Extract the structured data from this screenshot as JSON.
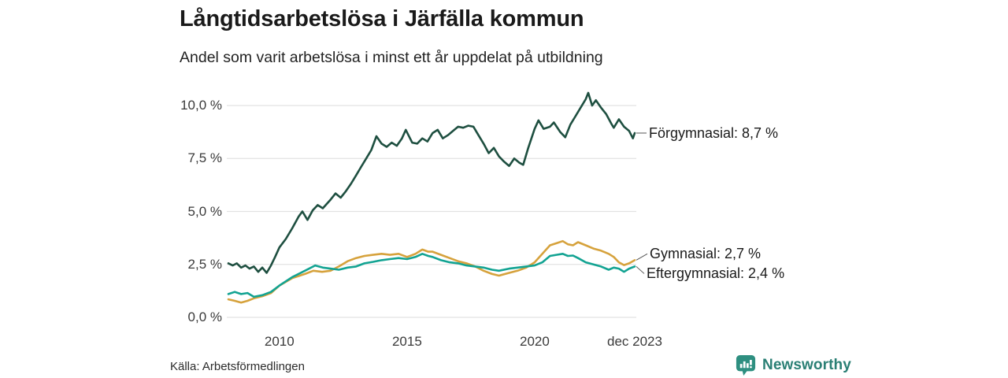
{
  "header": {
    "title": "Långtidsarbetslösa i Järfälla kommun",
    "subtitle": "Andel som varit arbetslösa i minst ett år uppdelat på utbildning"
  },
  "footer": {
    "source": "Källa: Arbetsförmedlingen",
    "brand": "Newsworthy"
  },
  "colors": {
    "forgymnasial": "#1e4f40",
    "gymnasial": "#d6a23c",
    "eftergymnasial": "#12a392",
    "grid": "#e2e2e2",
    "connector": "#555555",
    "text": "#1a1a1a",
    "tick_text": "#3a3a3a",
    "brand": "#2a7f74",
    "brand_icon": "#2e8f80"
  },
  "chart_data": {
    "type": "line",
    "title": "Långtidsarbetslösa i Järfälla kommun",
    "subtitle": "Andel som varit arbetslösa i minst ett år uppdelat på utbildning",
    "unit": "%",
    "grid": "horizontal",
    "legend_position": "right-end-labels",
    "x_axis": {
      "range": [
        2008.0,
        2023.92
      ],
      "ticks": [
        {
          "label": "2010",
          "x": 2010
        },
        {
          "label": "2015",
          "x": 2015
        },
        {
          "label": "2020",
          "x": 2020
        },
        {
          "label": "dec 2023",
          "x": 2023.92
        }
      ]
    },
    "y_axis": {
      "range": [
        0,
        10
      ],
      "ticks": [
        {
          "label": "10,0 %",
          "value": 10
        },
        {
          "label": "7,5 %",
          "value": 7.5
        },
        {
          "label": "5,0 %",
          "value": 5
        },
        {
          "label": "2,5 %",
          "value": 2.5
        },
        {
          "label": "0,0 %",
          "value": 0
        }
      ]
    },
    "series": [
      {
        "id": "forgymnasial",
        "name": "Förgymnasial",
        "end_label": "Förgymnasial: 8,7 %",
        "end_value": 8.7,
        "color_key": "forgymnasial",
        "points": [
          [
            2008.0,
            2.55
          ],
          [
            2008.17,
            2.45
          ],
          [
            2008.33,
            2.55
          ],
          [
            2008.5,
            2.35
          ],
          [
            2008.67,
            2.45
          ],
          [
            2008.83,
            2.3
          ],
          [
            2009.0,
            2.4
          ],
          [
            2009.17,
            2.15
          ],
          [
            2009.33,
            2.35
          ],
          [
            2009.5,
            2.1
          ],
          [
            2009.67,
            2.45
          ],
          [
            2009.83,
            2.85
          ],
          [
            2010.0,
            3.3
          ],
          [
            2010.25,
            3.7
          ],
          [
            2010.5,
            4.2
          ],
          [
            2010.75,
            4.75
          ],
          [
            2010.9,
            5.0
          ],
          [
            2011.1,
            4.6
          ],
          [
            2011.3,
            5.05
          ],
          [
            2011.5,
            5.3
          ],
          [
            2011.7,
            5.15
          ],
          [
            2012.0,
            5.55
          ],
          [
            2012.2,
            5.85
          ],
          [
            2012.4,
            5.65
          ],
          [
            2012.6,
            5.95
          ],
          [
            2012.8,
            6.3
          ],
          [
            2013.0,
            6.7
          ],
          [
            2013.2,
            7.1
          ],
          [
            2013.4,
            7.5
          ],
          [
            2013.6,
            7.9
          ],
          [
            2013.8,
            8.55
          ],
          [
            2014.0,
            8.2
          ],
          [
            2014.2,
            8.05
          ],
          [
            2014.4,
            8.25
          ],
          [
            2014.6,
            8.1
          ],
          [
            2014.8,
            8.45
          ],
          [
            2014.95,
            8.85
          ],
          [
            2015.2,
            8.25
          ],
          [
            2015.4,
            8.2
          ],
          [
            2015.6,
            8.45
          ],
          [
            2015.8,
            8.3
          ],
          [
            2016.0,
            8.7
          ],
          [
            2016.2,
            8.85
          ],
          [
            2016.4,
            8.45
          ],
          [
            2016.6,
            8.6
          ],
          [
            2016.8,
            8.8
          ],
          [
            2017.0,
            9.0
          ],
          [
            2017.2,
            8.95
          ],
          [
            2017.4,
            9.05
          ],
          [
            2017.6,
            9.0
          ],
          [
            2017.8,
            8.6
          ],
          [
            2018.0,
            8.2
          ],
          [
            2018.2,
            7.75
          ],
          [
            2018.4,
            8.0
          ],
          [
            2018.6,
            7.6
          ],
          [
            2018.8,
            7.35
          ],
          [
            2019.0,
            7.15
          ],
          [
            2019.2,
            7.5
          ],
          [
            2019.4,
            7.3
          ],
          [
            2019.55,
            7.2
          ],
          [
            2019.75,
            8.0
          ],
          [
            2020.0,
            8.9
          ],
          [
            2020.15,
            9.3
          ],
          [
            2020.35,
            8.9
          ],
          [
            2020.6,
            9.0
          ],
          [
            2020.75,
            9.2
          ],
          [
            2021.0,
            8.75
          ],
          [
            2021.2,
            8.5
          ],
          [
            2021.4,
            9.1
          ],
          [
            2021.6,
            9.5
          ],
          [
            2021.8,
            9.9
          ],
          [
            2022.0,
            10.3
          ],
          [
            2022.1,
            10.6
          ],
          [
            2022.25,
            10.0
          ],
          [
            2022.4,
            10.25
          ],
          [
            2022.6,
            9.9
          ],
          [
            2022.8,
            9.6
          ],
          [
            2023.0,
            9.15
          ],
          [
            2023.1,
            8.95
          ],
          [
            2023.3,
            9.35
          ],
          [
            2023.5,
            9.0
          ],
          [
            2023.7,
            8.8
          ],
          [
            2023.85,
            8.45
          ],
          [
            2023.92,
            8.7
          ]
        ]
      },
      {
        "id": "gymnasial",
        "name": "Gymnasial",
        "end_label": "Gymnasial: 2,7 %",
        "end_value": 2.7,
        "color_key": "gymnasial",
        "points": [
          [
            2008.0,
            0.85
          ],
          [
            2008.25,
            0.78
          ],
          [
            2008.5,
            0.7
          ],
          [
            2008.75,
            0.78
          ],
          [
            2009.0,
            0.9
          ],
          [
            2009.33,
            1.0
          ],
          [
            2009.67,
            1.15
          ],
          [
            2010.0,
            1.5
          ],
          [
            2010.5,
            1.85
          ],
          [
            2011.0,
            2.05
          ],
          [
            2011.33,
            2.2
          ],
          [
            2011.67,
            2.15
          ],
          [
            2012.0,
            2.2
          ],
          [
            2012.33,
            2.4
          ],
          [
            2012.67,
            2.65
          ],
          [
            2013.0,
            2.8
          ],
          [
            2013.33,
            2.9
          ],
          [
            2013.67,
            2.95
          ],
          [
            2014.0,
            3.0
          ],
          [
            2014.33,
            2.95
          ],
          [
            2014.67,
            3.0
          ],
          [
            2015.0,
            2.85
          ],
          [
            2015.33,
            3.0
          ],
          [
            2015.6,
            3.2
          ],
          [
            2015.83,
            3.1
          ],
          [
            2016.0,
            3.1
          ],
          [
            2016.33,
            2.95
          ],
          [
            2016.67,
            2.8
          ],
          [
            2017.0,
            2.65
          ],
          [
            2017.33,
            2.55
          ],
          [
            2017.67,
            2.4
          ],
          [
            2018.0,
            2.2
          ],
          [
            2018.33,
            2.05
          ],
          [
            2018.6,
            1.97
          ],
          [
            2019.0,
            2.1
          ],
          [
            2019.33,
            2.2
          ],
          [
            2019.67,
            2.35
          ],
          [
            2020.0,
            2.6
          ],
          [
            2020.3,
            3.0
          ],
          [
            2020.6,
            3.4
          ],
          [
            2020.85,
            3.5
          ],
          [
            2021.1,
            3.6
          ],
          [
            2021.3,
            3.45
          ],
          [
            2021.5,
            3.4
          ],
          [
            2021.7,
            3.55
          ],
          [
            2022.0,
            3.4
          ],
          [
            2022.3,
            3.25
          ],
          [
            2022.6,
            3.15
          ],
          [
            2022.9,
            3.0
          ],
          [
            2023.1,
            2.85
          ],
          [
            2023.3,
            2.6
          ],
          [
            2023.5,
            2.47
          ],
          [
            2023.7,
            2.55
          ],
          [
            2023.92,
            2.7
          ]
        ]
      },
      {
        "id": "eftergymnasial",
        "name": "Eftergymnasial",
        "end_label": "Eftergymnasial: 2,4 %",
        "end_value": 2.4,
        "color_key": "eftergymnasial",
        "points": [
          [
            2008.0,
            1.1
          ],
          [
            2008.25,
            1.2
          ],
          [
            2008.5,
            1.1
          ],
          [
            2008.75,
            1.15
          ],
          [
            2009.0,
            0.97
          ],
          [
            2009.33,
            1.05
          ],
          [
            2009.67,
            1.2
          ],
          [
            2010.0,
            1.5
          ],
          [
            2010.5,
            1.9
          ],
          [
            2011.0,
            2.2
          ],
          [
            2011.4,
            2.45
          ],
          [
            2011.7,
            2.35
          ],
          [
            2012.0,
            2.3
          ],
          [
            2012.33,
            2.25
          ],
          [
            2012.67,
            2.35
          ],
          [
            2013.0,
            2.4
          ],
          [
            2013.33,
            2.55
          ],
          [
            2013.67,
            2.62
          ],
          [
            2014.0,
            2.7
          ],
          [
            2014.33,
            2.75
          ],
          [
            2014.67,
            2.8
          ],
          [
            2015.0,
            2.75
          ],
          [
            2015.33,
            2.85
          ],
          [
            2015.6,
            3.0
          ],
          [
            2015.83,
            2.9
          ],
          [
            2016.0,
            2.85
          ],
          [
            2016.33,
            2.7
          ],
          [
            2016.67,
            2.6
          ],
          [
            2017.0,
            2.55
          ],
          [
            2017.33,
            2.45
          ],
          [
            2017.67,
            2.4
          ],
          [
            2018.0,
            2.35
          ],
          [
            2018.33,
            2.25
          ],
          [
            2018.6,
            2.2
          ],
          [
            2019.0,
            2.3
          ],
          [
            2019.33,
            2.35
          ],
          [
            2019.67,
            2.4
          ],
          [
            2020.0,
            2.45
          ],
          [
            2020.3,
            2.6
          ],
          [
            2020.6,
            2.9
          ],
          [
            2020.85,
            2.95
          ],
          [
            2021.1,
            3.0
          ],
          [
            2021.3,
            2.9
          ],
          [
            2021.5,
            2.92
          ],
          [
            2021.7,
            2.8
          ],
          [
            2022.0,
            2.6
          ],
          [
            2022.3,
            2.5
          ],
          [
            2022.6,
            2.4
          ],
          [
            2022.9,
            2.25
          ],
          [
            2023.1,
            2.35
          ],
          [
            2023.3,
            2.3
          ],
          [
            2023.5,
            2.15
          ],
          [
            2023.7,
            2.3
          ],
          [
            2023.92,
            2.4
          ]
        ]
      }
    ]
  }
}
